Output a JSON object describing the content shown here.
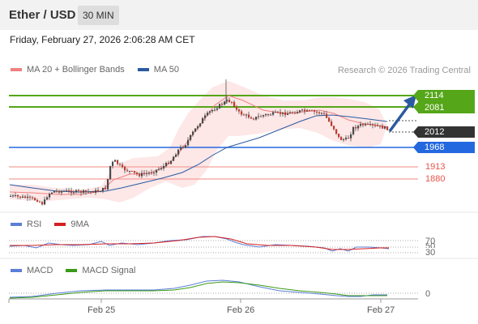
{
  "header": {
    "title": "Ether / USD",
    "timeframe": "30 MIN"
  },
  "datetime": "Friday, February 27, 2026 2:06:28 AM CET",
  "legend": {
    "ma20": {
      "label": "MA 20 + Bollinger Bands",
      "color": "#f08080"
    },
    "ma50": {
      "label": "MA 50",
      "color": "#2b5aa0"
    }
  },
  "credit": "Research © 2026 Trading Central",
  "levels": {
    "r2": {
      "label": "2114",
      "color": "#55a618"
    },
    "r1": {
      "label": "2081",
      "color": "#55a618"
    },
    "last": {
      "label": "2012",
      "color": "#333333"
    },
    "s1": {
      "label": "1968",
      "color": "#2468e0"
    },
    "s2": {
      "label": "1913",
      "color": "#e8554a"
    },
    "s3": {
      "label": "1880",
      "color": "#e8554a"
    }
  },
  "rsi": {
    "legend": {
      "rsi": "RSI",
      "ma": "9MA"
    },
    "levels": [
      "70",
      "50",
      "30"
    ],
    "colors": {
      "rsi": "#5b7fd6",
      "ma": "#d62020"
    }
  },
  "macd": {
    "legend": {
      "macd": "MACD",
      "signal": "MACD Signal"
    },
    "zero_label": "0",
    "colors": {
      "macd": "#5b7fd6",
      "signal": "#3a9a18"
    }
  },
  "x_axis": [
    "Feb 25",
    "Feb 26",
    "Feb 27"
  ],
  "icons": {
    "arrow": "up-right-arrow-icon"
  }
}
